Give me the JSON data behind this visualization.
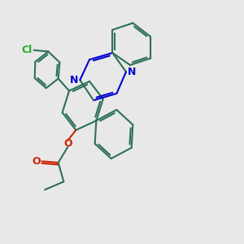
{
  "bg": "#e8e8e8",
  "bc": "#2d7055",
  "nc": "#0000cc",
  "oc": "#cc2200",
  "clc": "#22aa22",
  "lw": 1.5,
  "dbo": 0.06,
  "xlim": [
    0.0,
    7.5
  ],
  "ylim": [
    -1.0,
    6.5
  ]
}
